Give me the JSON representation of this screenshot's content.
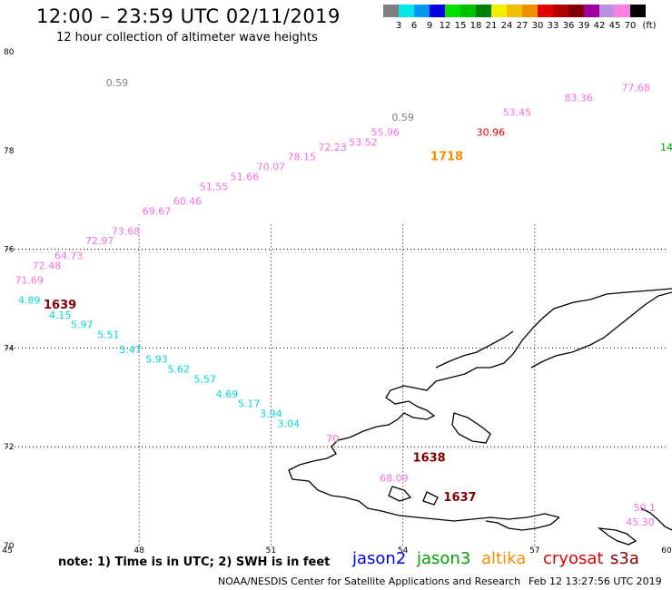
{
  "header": {
    "title": "12:00 – 23:59 UTC 02/11/2019",
    "subtitle": "12 hour collection of altimeter wave heights"
  },
  "colorbar": {
    "unit_label": "(ft)",
    "bins": [
      {
        "label": "3",
        "color": "#808080"
      },
      {
        "label": "6",
        "color": "#00e8e8"
      },
      {
        "label": "9",
        "color": "#0098f0"
      },
      {
        "label": "12",
        "color": "#0000e0"
      },
      {
        "label": "15",
        "color": "#00e000"
      },
      {
        "label": "18",
        "color": "#00c000"
      },
      {
        "label": "21",
        "color": "#008000"
      },
      {
        "label": "24",
        "color": "#f0f000"
      },
      {
        "label": "27",
        "color": "#f0c000"
      },
      {
        "label": "30",
        "color": "#f09000"
      },
      {
        "label": "33",
        "color": "#e00000"
      },
      {
        "label": "36",
        "color": "#b00000"
      },
      {
        "label": "39",
        "color": "#800000"
      },
      {
        "label": "42",
        "color": "#a000a0"
      },
      {
        "label": "45",
        "color": "#c090e0"
      },
      {
        "label": "70",
        "color": "#ff80e0"
      },
      {
        "label": "",
        "color": "#000000"
      }
    ]
  },
  "axes": {
    "lat_labels": [
      "80",
      "78",
      "76",
      "74",
      "72",
      "70"
    ],
    "lon_labels": [
      "45",
      "48",
      "51",
      "54",
      "57",
      "60"
    ]
  },
  "chart_data": {
    "type": "scatter",
    "xlabel": "",
    "ylabel": "",
    "xlim": [
      45,
      60
    ],
    "ylim": [
      70,
      80
    ],
    "grid": true,
    "series": [
      {
        "name": "jason2",
        "color": "#0000e0",
        "points": []
      },
      {
        "name": "jason3",
        "color": "#00a000",
        "points": [
          {
            "lon": 60.0,
            "lat": 78.0,
            "label": "14"
          }
        ]
      },
      {
        "name": "altika",
        "color": "#f09000",
        "points": [
          {
            "lon": 55.0,
            "lat": 77.8,
            "label": "1718"
          }
        ]
      },
      {
        "name": "cryosat",
        "color": "#e00000",
        "points": [
          {
            "lon": 56.0,
            "lat": 78.3,
            "label": "30.96"
          }
        ]
      },
      {
        "name": "s3a",
        "color": "#800000",
        "points": [
          {
            "lon": 46.2,
            "lat": 74.8,
            "label": "1639"
          },
          {
            "lon": 54.6,
            "lat": 71.7,
            "label": "1638"
          },
          {
            "lon": 55.3,
            "lat": 70.9,
            "label": "1637"
          }
        ]
      },
      {
        "name": "",
        "color": "#808080",
        "points": [
          {
            "lon": 47.5,
            "lat": 79.3,
            "label": "0.59"
          },
          {
            "lon": 54.0,
            "lat": 78.6,
            "label": "0.59"
          }
        ]
      },
      {
        "name": "",
        "color": "#f070e0",
        "points": [
          {
            "lon": 45.5,
            "lat": 75.3,
            "label": "71.69"
          },
          {
            "lon": 45.9,
            "lat": 75.6,
            "label": "72.48"
          },
          {
            "lon": 46.4,
            "lat": 75.8,
            "label": "64.73"
          },
          {
            "lon": 47.1,
            "lat": 76.1,
            "label": "72.97"
          },
          {
            "lon": 47.7,
            "lat": 76.3,
            "label": "73.68"
          },
          {
            "lon": 48.4,
            "lat": 76.7,
            "label": "69.67"
          },
          {
            "lon": 49.1,
            "lat": 76.9,
            "label": "60.46"
          },
          {
            "lon": 49.7,
            "lat": 77.2,
            "label": "51.55"
          },
          {
            "lon": 50.4,
            "lat": 77.4,
            "label": "51.66"
          },
          {
            "lon": 51.0,
            "lat": 77.6,
            "label": "70.07"
          },
          {
            "lon": 51.7,
            "lat": 77.8,
            "label": "78.15"
          },
          {
            "lon": 52.4,
            "lat": 78.0,
            "label": "72.23"
          },
          {
            "lon": 53.1,
            "lat": 78.1,
            "label": "53.52"
          },
          {
            "lon": 53.6,
            "lat": 78.3,
            "label": "55.96"
          },
          {
            "lon": 56.6,
            "lat": 78.7,
            "label": "53.45"
          },
          {
            "lon": 58.0,
            "lat": 79.0,
            "label": "83.36"
          },
          {
            "lon": 59.3,
            "lat": 79.2,
            "label": "77.68"
          },
          {
            "lon": 53.8,
            "lat": 71.3,
            "label": "68.09"
          },
          {
            "lon": 52.4,
            "lat": 72.1,
            "label": "70"
          },
          {
            "lon": 59.5,
            "lat": 70.7,
            "label": "50.1"
          },
          {
            "lon": 59.4,
            "lat": 70.4,
            "label": "45.30"
          }
        ]
      },
      {
        "name": "",
        "color": "#00d8d8",
        "points": [
          {
            "lon": 45.5,
            "lat": 74.9,
            "label": "4.89"
          },
          {
            "lon": 46.2,
            "lat": 74.6,
            "label": "4.15"
          },
          {
            "lon": 46.7,
            "lat": 74.4,
            "label": "5.97"
          },
          {
            "lon": 47.3,
            "lat": 74.2,
            "label": "5.51"
          },
          {
            "lon": 47.8,
            "lat": 73.9,
            "label": "5.47"
          },
          {
            "lon": 48.4,
            "lat": 73.7,
            "label": "5.93"
          },
          {
            "lon": 48.9,
            "lat": 73.5,
            "label": "5.62"
          },
          {
            "lon": 49.5,
            "lat": 73.3,
            "label": "5.57"
          },
          {
            "lon": 50.0,
            "lat": 73.0,
            "label": "4.69"
          },
          {
            "lon": 50.5,
            "lat": 72.8,
            "label": "5.17"
          },
          {
            "lon": 51.0,
            "lat": 72.6,
            "label": "3.94"
          },
          {
            "lon": 51.4,
            "lat": 72.4,
            "label": "3.04"
          }
        ]
      }
    ]
  },
  "footer": {
    "note": "note:  1) Time is in UTC;  2) SWH is in feet",
    "satellites": [
      {
        "name": "jason2",
        "color": "#0000e0"
      },
      {
        "name": "jason3",
        "color": "#00a000"
      },
      {
        "name": "altika",
        "color": "#f09000"
      },
      {
        "name": "cryosat",
        "color": "#e00000"
      },
      {
        "name": "s3a",
        "color": "#800000"
      }
    ],
    "credit": "NOAA/NESDIS Center for Satellite Applications and Research",
    "timestamp": "Feb 12 13:27:56 UTC 2019"
  }
}
